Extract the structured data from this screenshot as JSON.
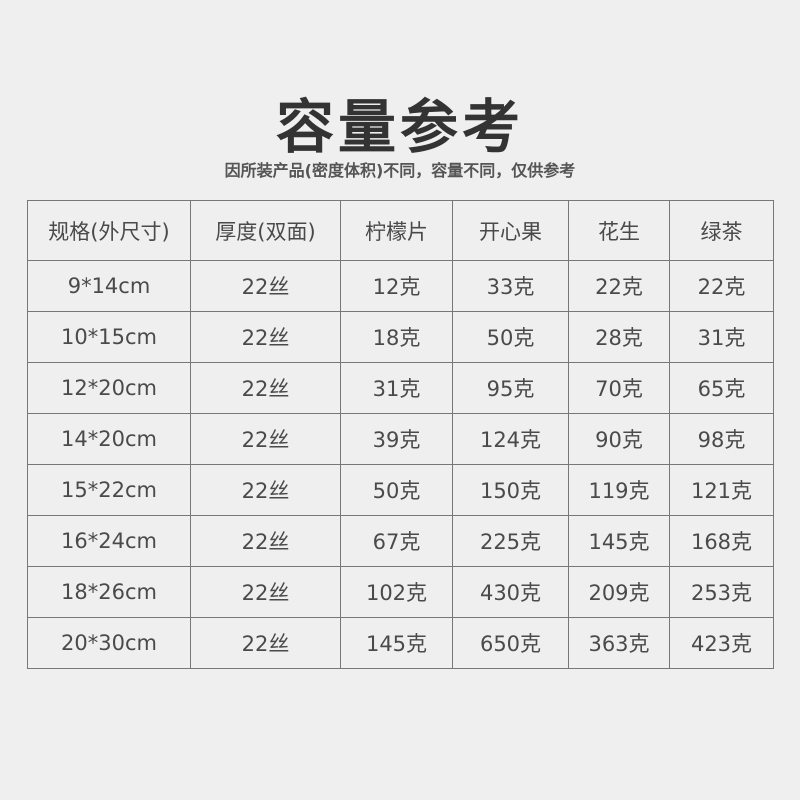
{
  "title": "容量参考",
  "subtitle": "因所装产品(密度体积)不同，容量不同，仅供参考",
  "headers": [
    "规格(外尺寸)",
    "厚度(双面)",
    "柠檬片",
    "开心果",
    "花生",
    "绿茶"
  ],
  "rows": [
    [
      "9*14cm",
      "22丝",
      "12克",
      "33克",
      "22克",
      "22克"
    ],
    [
      "10*15cm",
      "22丝",
      "18克",
      "50克",
      "28克",
      "31克"
    ],
    [
      "12*20cm",
      "22丝",
      "31克",
      "95克",
      "70克",
      "65克"
    ],
    [
      "14*20cm",
      "22丝",
      "39克",
      "124克",
      "90克",
      "98克"
    ],
    [
      "15*22cm",
      "22丝",
      "50克",
      "150克",
      "119克",
      "121克"
    ],
    [
      "16*24cm",
      "22丝",
      "67克",
      "225克",
      "145克",
      "168克"
    ],
    [
      "18*26cm",
      "22丝",
      "102克",
      "430克",
      "209克",
      "253克"
    ],
    [
      "20*30cm",
      "22丝",
      "145克",
      "650克",
      "363克",
      "423克"
    ]
  ]
}
